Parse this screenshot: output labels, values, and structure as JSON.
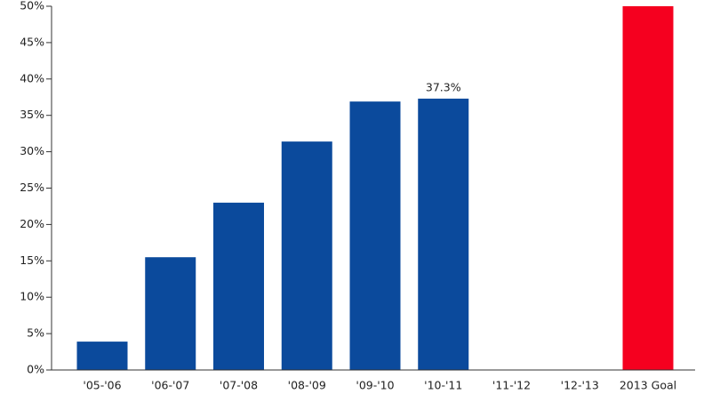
{
  "chart_data": {
    "type": "bar",
    "categories": [
      "'05-'06",
      "'06-'07",
      "'07-'08",
      "'08-'09",
      "'09-'10",
      "'10-'11",
      "'11-'12",
      "'12-'13",
      "2013 Goal"
    ],
    "values": [
      3.9,
      15.5,
      23.0,
      31.4,
      36.9,
      37.3,
      null,
      null,
      50
    ],
    "value_labels": [
      null,
      null,
      null,
      null,
      null,
      "37.3%",
      null,
      null,
      null
    ],
    "colors": [
      "#0b4a9c",
      "#0b4a9c",
      "#0b4a9c",
      "#0b4a9c",
      "#0b4a9c",
      "#0b4a9c",
      "#0b4a9c",
      "#0b4a9c",
      "#f5001f"
    ],
    "ylim": [
      0,
      50
    ],
    "yticks": [
      {
        "value": 0,
        "label": "0%"
      },
      {
        "value": 5,
        "label": "5%"
      },
      {
        "value": 10,
        "label": "10%"
      },
      {
        "value": 15,
        "label": "15%"
      },
      {
        "value": 20,
        "label": "20%"
      },
      {
        "value": 25,
        "label": "25%"
      },
      {
        "value": 30,
        "label": "30%"
      },
      {
        "value": 35,
        "label": "35%"
      },
      {
        "value": 40,
        "label": "40%"
      },
      {
        "value": 45,
        "label": "45%"
      },
      {
        "value": 50,
        "label": "50%"
      }
    ],
    "grid": false
  }
}
